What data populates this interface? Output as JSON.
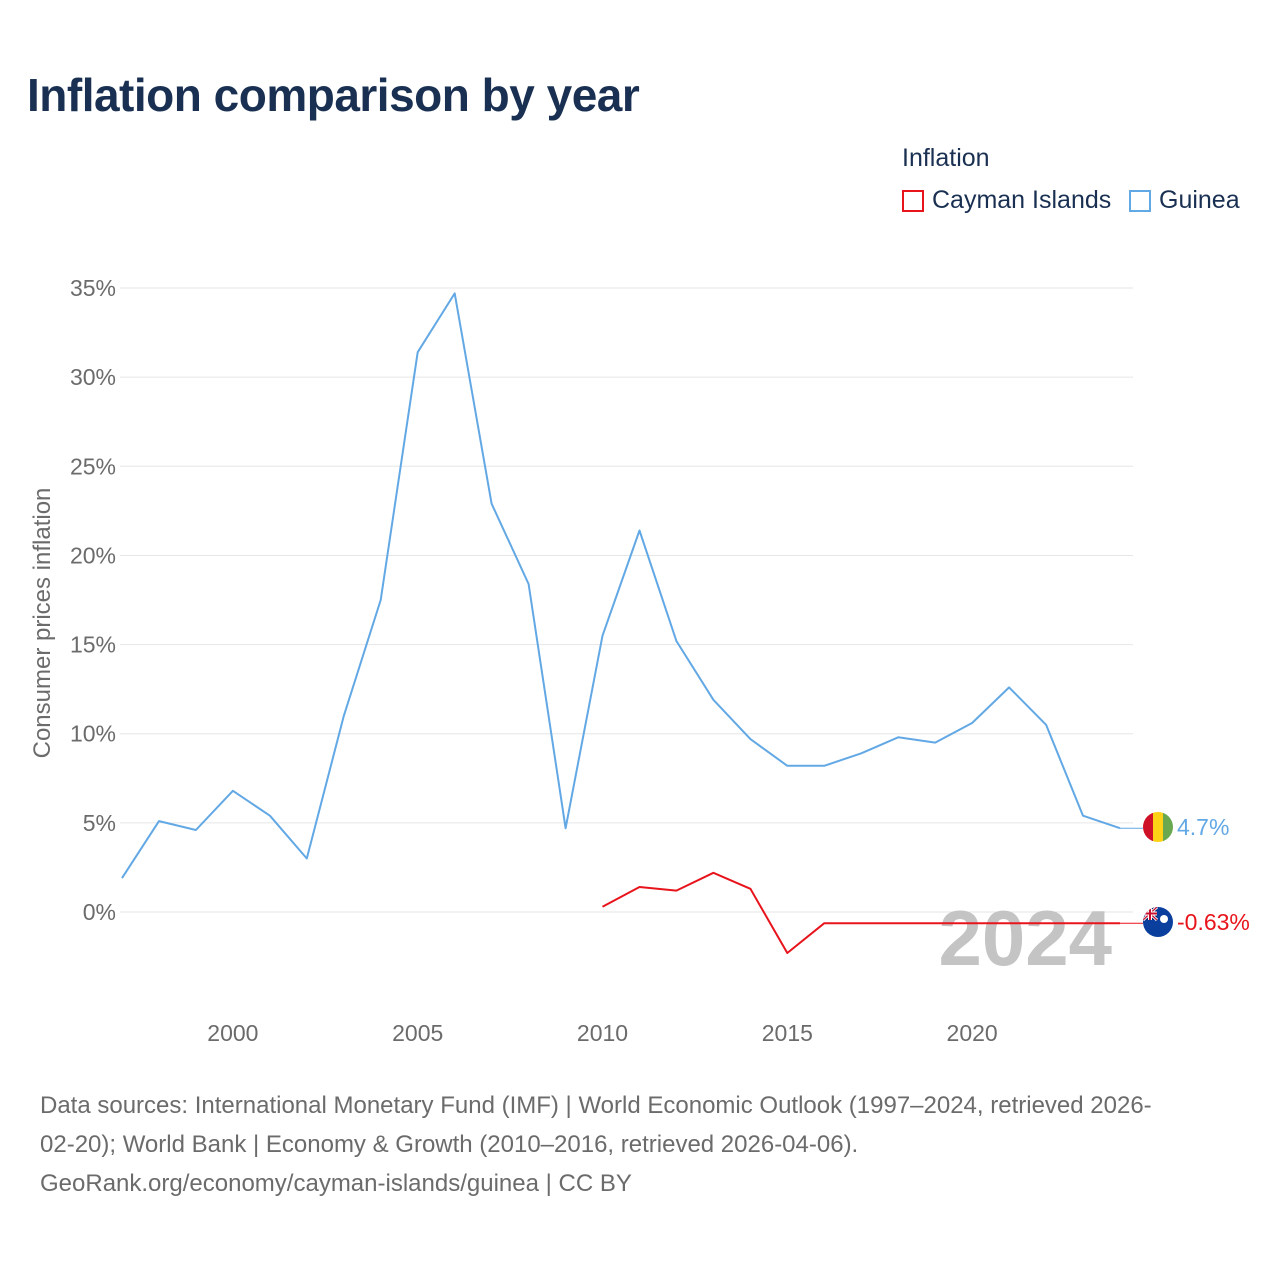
{
  "title": "Inflation comparison by year",
  "legend": {
    "title": "Inflation",
    "items": [
      {
        "label": "Cayman Islands",
        "color": "#e8141c"
      },
      {
        "label": "Guinea",
        "color": "#62a8e5"
      }
    ]
  },
  "chart_data": {
    "type": "line",
    "title": "Inflation comparison by year",
    "xlabel": "",
    "ylabel": "Consumer prices inflation",
    "xlim": [
      1997,
      2024
    ],
    "ylim": [
      -5,
      35
    ],
    "x_ticks": [
      2000,
      2005,
      2010,
      2015,
      2020
    ],
    "y_ticks": [
      0,
      5,
      10,
      15,
      20,
      25,
      30,
      35
    ],
    "y_tick_labels": [
      "0%",
      "5%",
      "10%",
      "15%",
      "20%",
      "25%",
      "30%",
      "35%"
    ],
    "grid": true,
    "year_label": "2024",
    "series": [
      {
        "name": "Guinea",
        "color": "#62a8e5",
        "end_label": "4.7%",
        "end_value": 4.7,
        "flag_icon": "guinea-flag-icon",
        "x": [
          1997,
          1998,
          1999,
          2000,
          2001,
          2002,
          2003,
          2004,
          2005,
          2006,
          2007,
          2008,
          2009,
          2010,
          2011,
          2012,
          2013,
          2014,
          2015,
          2016,
          2017,
          2018,
          2019,
          2020,
          2021,
          2022,
          2023,
          2024
        ],
        "values": [
          1.9,
          5.1,
          4.6,
          6.8,
          5.4,
          3.0,
          11.0,
          17.5,
          31.4,
          34.7,
          22.9,
          18.4,
          4.7,
          15.5,
          21.4,
          15.2,
          11.9,
          9.7,
          8.2,
          8.2,
          8.9,
          9.8,
          9.5,
          10.6,
          12.6,
          10.5,
          5.4,
          4.7
        ]
      },
      {
        "name": "Cayman Islands",
        "color": "#e8141c",
        "end_label": "-0.63%",
        "end_value": -0.63,
        "flag_icon": "cayman-islands-flag-icon",
        "x": [
          2010,
          2011,
          2012,
          2013,
          2014,
          2015,
          2016,
          2024
        ],
        "values": [
          0.3,
          1.4,
          1.2,
          2.2,
          1.3,
          -2.3,
          -0.63,
          -0.63
        ]
      }
    ]
  },
  "sources": {
    "line1": "Data sources: International Monetary Fund (IMF) | World Economic Outlook (1997–2024, retrieved 2026-",
    "line2": "02-20); World Bank | Economy & Growth (2010–2016, retrieved 2026-04-06).",
    "line3": "GeoRank.org/economy/cayman-islands/guinea | CC BY"
  }
}
